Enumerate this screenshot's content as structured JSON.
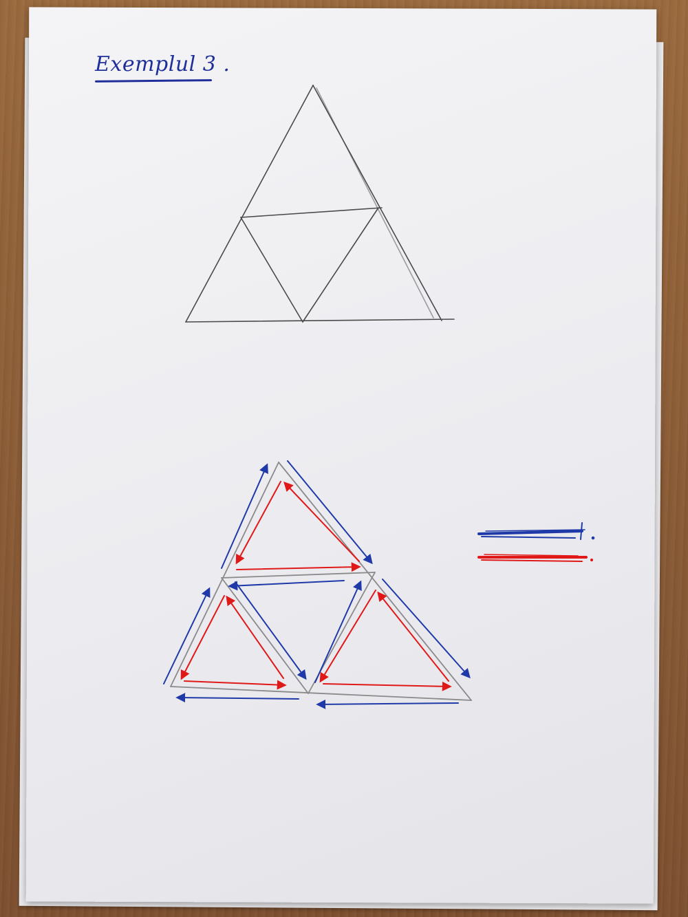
{
  "title": "Exemplul 3 .",
  "colors": {
    "pencil": "#4a4a4a",
    "blue_ink": "#1f3aa8",
    "red_ink": "#e01818"
  },
  "legend": {
    "blue": "",
    "red": ""
  }
}
